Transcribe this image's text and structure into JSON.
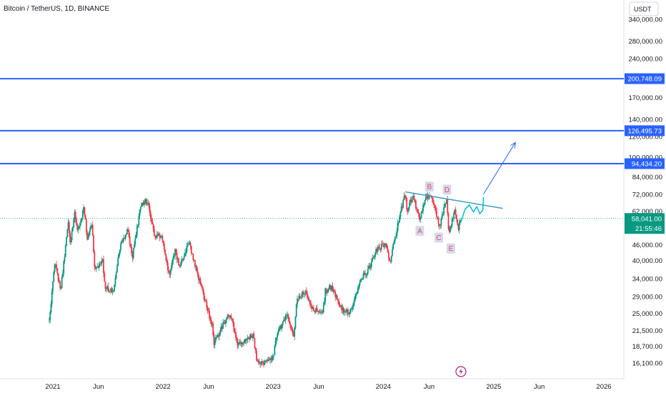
{
  "chart_data": {
    "type": "candlestick",
    "title": "Bitcoin / TetherUS, 1D, BINANCE",
    "currency_label": "USDT",
    "y_scale": "log",
    "y_ticks": [
      "340,000.00",
      "280,000.00",
      "240,000.00",
      "170,000.00",
      "140,000.00",
      "120,000.00",
      "100,000.00",
      "84,000.00",
      "72,000.00",
      "62,000.00",
      "46,000.00",
      "40,000.00",
      "34,000.00",
      "29,000.00",
      "25,000.00",
      "21,500.00",
      "18,700.00",
      "16,100.00"
    ],
    "y_tick_values": [
      340000,
      280000,
      240000,
      170000,
      140000,
      120000,
      100000,
      84000,
      72000,
      62000,
      46000,
      40000,
      34000,
      29000,
      25000,
      21500,
      18700,
      16100
    ],
    "x_ticks": [
      "2021",
      "Jun",
      "2022",
      "Jun",
      "2023",
      "Jun",
      "2024",
      "Jun",
      "2025",
      "Jun",
      "2026"
    ],
    "x_tick_dates": [
      "2021-01-01",
      "2021-06-01",
      "2022-01-01",
      "2022-06-01",
      "2023-01-01",
      "2023-06-01",
      "2024-01-01",
      "2024-06-01",
      "2025-01-01",
      "2025-06-01",
      "2026-01-01"
    ],
    "horizontal_levels": [
      {
        "price": 200748.09,
        "label": "200,748.09",
        "color": "#2962ff"
      },
      {
        "price": 126495.73,
        "label": "126,495.73",
        "color": "#2962ff"
      },
      {
        "price": 94434.2,
        "label": "94,434.20",
        "color": "#2962ff"
      }
    ],
    "current_price": {
      "label": "58,041.00",
      "countdown": "21:55:46",
      "price": 58041,
      "color": "#089981"
    },
    "up_color": "#089981",
    "down_color": "#f23645",
    "close_path": [
      [
        "2020-12-20",
        23500
      ],
      [
        "2021-01-08",
        40000
      ],
      [
        "2021-01-27",
        30500
      ],
      [
        "2021-02-21",
        57000
      ],
      [
        "2021-02-28",
        45000
      ],
      [
        "2021-03-13",
        61000
      ],
      [
        "2021-03-25",
        52000
      ],
      [
        "2021-04-14",
        63500
      ],
      [
        "2021-04-25",
        49000
      ],
      [
        "2021-05-10",
        56000
      ],
      [
        "2021-05-19",
        37000
      ],
      [
        "2021-06-15",
        40000
      ],
      [
        "2021-06-22",
        32000
      ],
      [
        "2021-07-20",
        30000
      ],
      [
        "2021-08-14",
        47000
      ],
      [
        "2021-09-06",
        52000
      ],
      [
        "2021-09-21",
        41000
      ],
      [
        "2021-10-20",
        66000
      ],
      [
        "2021-11-10",
        68000
      ],
      [
        "2021-12-04",
        49000
      ],
      [
        "2021-12-27",
        50500
      ],
      [
        "2022-01-22",
        35000
      ],
      [
        "2022-02-10",
        44000
      ],
      [
        "2022-02-24",
        37500
      ],
      [
        "2022-03-28",
        47000
      ],
      [
        "2022-05-09",
        31000
      ],
      [
        "2022-06-13",
        22500
      ],
      [
        "2022-06-18",
        18900
      ],
      [
        "2022-07-30",
        24000
      ],
      [
        "2022-08-14",
        24500
      ],
      [
        "2022-09-06",
        18800
      ],
      [
        "2022-10-26",
        20700
      ],
      [
        "2022-11-09",
        16000
      ],
      [
        "2022-12-30",
        16500
      ],
      [
        "2023-01-14",
        21000
      ],
      [
        "2023-02-16",
        24500
      ],
      [
        "2023-03-10",
        20000
      ],
      [
        "2023-03-20",
        28000
      ],
      [
        "2023-04-14",
        30500
      ],
      [
        "2023-05-12",
        26000
      ],
      [
        "2023-06-15",
        25000
      ],
      [
        "2023-06-23",
        30500
      ],
      [
        "2023-07-13",
        31500
      ],
      [
        "2023-08-17",
        26000
      ],
      [
        "2023-09-11",
        25000
      ],
      [
        "2023-10-24",
        34500
      ],
      [
        "2023-11-15",
        37500
      ],
      [
        "2023-12-08",
        44000
      ],
      [
        "2024-01-11",
        46500
      ],
      [
        "2024-01-23",
        39500
      ],
      [
        "2024-02-28",
        62000
      ],
      [
        "2024-03-14",
        73000
      ],
      [
        "2024-03-20",
        62500
      ],
      [
        "2024-04-08",
        71000
      ],
      [
        "2024-05-01",
        57000
      ],
      [
        "2024-05-21",
        71000
      ],
      [
        "2024-06-06",
        71500
      ],
      [
        "2024-07-05",
        54000
      ],
      [
        "2024-07-29",
        69500
      ],
      [
        "2024-08-05",
        50000
      ],
      [
        "2024-08-25",
        64000
      ],
      [
        "2024-09-06",
        53500
      ],
      [
        "2024-09-12",
        58041
      ]
    ],
    "annotations": [
      {
        "text": "A",
        "date": "2024-05-01",
        "price": 52000
      },
      {
        "text": "B",
        "date": "2024-06-02",
        "price": 77000
      },
      {
        "text": "C",
        "date": "2024-07-03",
        "price": 49000
      },
      {
        "text": "D",
        "date": "2024-07-30",
        "price": 75000
      },
      {
        "text": "E",
        "date": "2024-08-12",
        "price": 44500
      }
    ],
    "trend_line": {
      "from": {
        "date": "2024-03-14",
        "price": 73500
      },
      "to": {
        "date": "2025-01-31",
        "price": 63500
      },
      "color": "#3aa0c8"
    },
    "projection_path": [
      [
        "2024-09-14",
        56000
      ],
      [
        "2024-09-28",
        63000
      ],
      [
        "2024-10-12",
        65500
      ],
      [
        "2024-10-26",
        61500
      ],
      [
        "2024-11-06",
        64500
      ],
      [
        "2024-11-16",
        60500
      ],
      [
        "2024-11-26",
        62500
      ],
      [
        "2024-11-28",
        70000
      ]
    ],
    "projection_arrow": {
      "from": {
        "date": "2024-11-28",
        "price": 72000
      },
      "to": {
        "date": "2025-03-14",
        "price": 114000
      },
      "color": "#2962ff"
    },
    "icon": "lightning-icon",
    "grid": false
  }
}
